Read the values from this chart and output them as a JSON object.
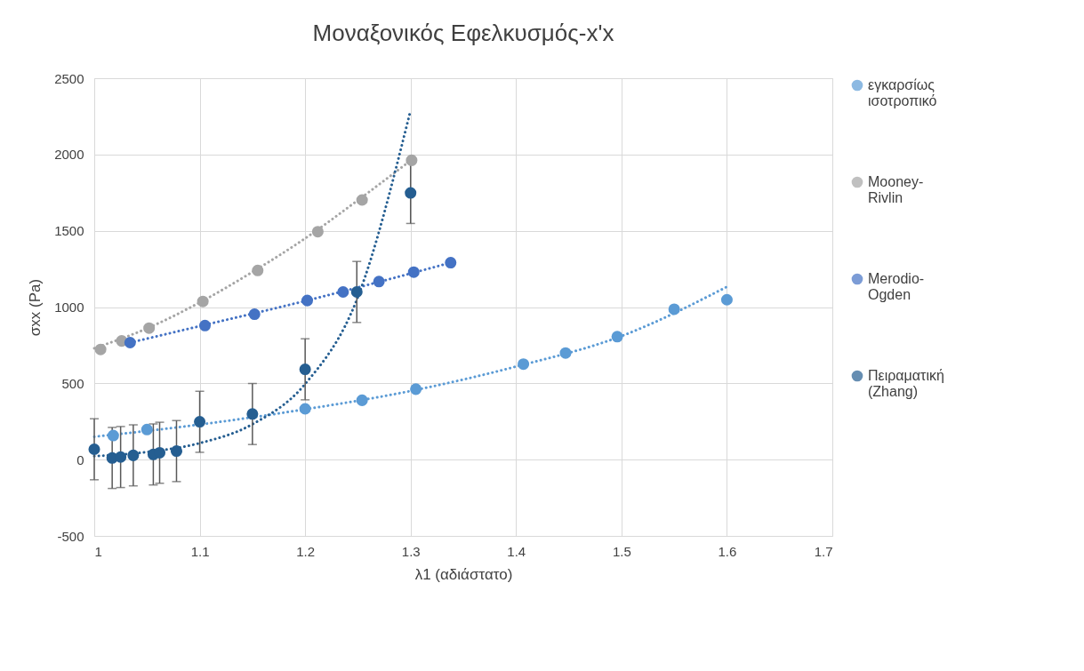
{
  "chart_data": {
    "type": "scatter",
    "title": "Μοναξονικός Εφελκυσμός-x'x",
    "xlabel": "λ1 (αδιάστατο)",
    "ylabel": "σxx (Pa)",
    "xlim": [
      1,
      1.7
    ],
    "xticks": [
      1,
      1.1,
      1.2,
      1.3,
      1.4,
      1.5,
      1.6,
      1.7
    ],
    "ylim": [
      -500,
      2500
    ],
    "yticks": [
      -500,
      0,
      500,
      1000,
      1500,
      2000,
      2500
    ],
    "grid": true,
    "legend": "right",
    "series": [
      {
        "name": "εγκαρσίως ισοτροπικό",
        "marker": "circle",
        "color": "#5b9bd5",
        "x": [
          1.018,
          1.05,
          1.2,
          1.254,
          1.305,
          1.407,
          1.447,
          1.496,
          1.55,
          1.6
        ],
        "values": [
          158,
          197,
          333,
          389,
          462,
          626,
          699,
          806,
          986,
          1048
        ]
      },
      {
        "name": "Mooney-Rivlin",
        "marker": "circle",
        "color": "#a5a5a5",
        "x": [
          1.006,
          1.026,
          1.052,
          1.103,
          1.155,
          1.212,
          1.254,
          1.301
        ],
        "values": [
          722,
          778,
          862,
          1037,
          1240,
          1494,
          1702,
          1962
        ]
      },
      {
        "name": "Merodio-Ogden",
        "marker": "circle",
        "color": "#4472c4",
        "x": [
          1.034,
          1.105,
          1.152,
          1.202,
          1.236,
          1.27,
          1.303,
          1.338
        ],
        "values": [
          767,
          879,
          953,
          1043,
          1099,
          1167,
          1229,
          1291
        ]
      },
      {
        "name": "Πειραματική (Zhang)",
        "marker": "circle",
        "color": "#255e91",
        "x": [
          1.0,
          1.017,
          1.025,
          1.037,
          1.056,
          1.062,
          1.078,
          1.1,
          1.15,
          1.2,
          1.249,
          1.3
        ],
        "values": [
          68,
          11,
          17,
          28,
          34,
          45,
          56,
          248,
          299,
          592,
          1099,
          1748
        ],
        "errors": [
          200,
          200,
          200,
          200,
          200,
          200,
          200,
          200,
          200,
          200,
          200,
          200
        ]
      },
      {
        "type": "line",
        "marker": "none",
        "line_style": "dotted",
        "color": "#5b9bd5",
        "x": [
          1.0,
          1.1,
          1.2,
          1.3,
          1.4,
          1.5,
          1.6
        ],
        "values": [
          150,
          230,
          330,
          450,
          610,
          810,
          1133
        ]
      },
      {
        "type": "line",
        "marker": "none",
        "line_style": "dotted",
        "color": "#a5a5a5",
        "x": [
          1.0,
          1.05,
          1.1,
          1.15,
          1.2,
          1.25,
          1.3
        ],
        "values": [
          730,
          860,
          1030,
          1230,
          1450,
          1700,
          1960
        ]
      },
      {
        "type": "line",
        "marker": "none",
        "line_style": "dotted",
        "color": "#4472c4",
        "x": [
          1.034,
          1.1,
          1.2,
          1.3,
          1.338
        ],
        "values": [
          767,
          875,
          1040,
          1220,
          1291
        ]
      },
      {
        "type": "line",
        "marker": "none",
        "line_style": "dotted",
        "color": "#255e91",
        "x": [
          1.0,
          1.05,
          1.1,
          1.15,
          1.2,
          1.25,
          1.3
        ],
        "values": [
          23,
          50,
          108,
          232,
          496,
          1066,
          2290
        ]
      }
    ]
  }
}
